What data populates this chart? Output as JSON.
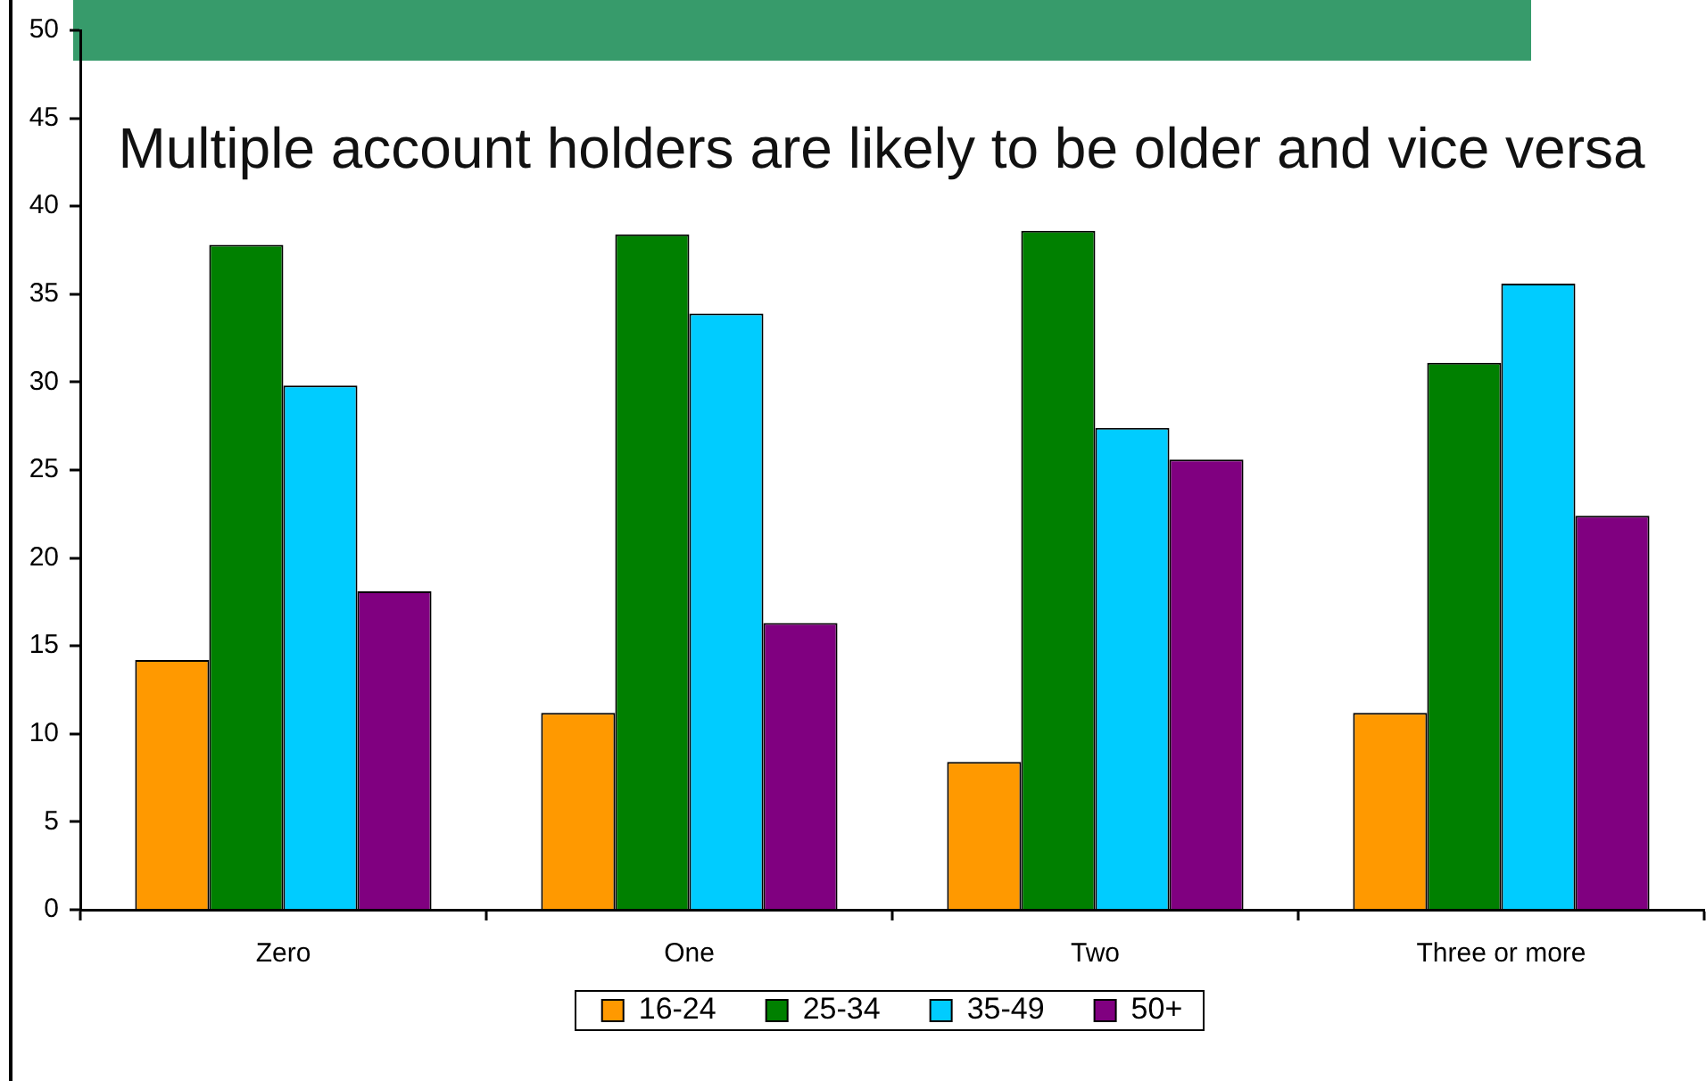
{
  "chart_data": {
    "type": "bar",
    "title": "Multiple account holders are likely to be older and vice versa",
    "categories": [
      "Zero",
      "One",
      "Two",
      "Three or more"
    ],
    "series": [
      {
        "name": "16-24",
        "color": "#ff9900",
        "values": [
          14.2,
          11.2,
          8.4,
          11.2
        ]
      },
      {
        "name": "25-34",
        "color": "#008000",
        "values": [
          37.8,
          38.4,
          38.6,
          31.1
        ]
      },
      {
        "name": "35-49",
        "color": "#00ccff",
        "values": [
          29.8,
          33.9,
          27.4,
          35.6
        ]
      },
      {
        "name": "50+",
        "color": "#800080",
        "values": [
          18.1,
          16.3,
          25.6,
          22.4
        ]
      }
    ],
    "ylim": [
      0,
      50
    ],
    "yticks": [
      0,
      5,
      10,
      15,
      20,
      25,
      30,
      35,
      40,
      45,
      50
    ],
    "grid": false,
    "legend": "bottom"
  }
}
